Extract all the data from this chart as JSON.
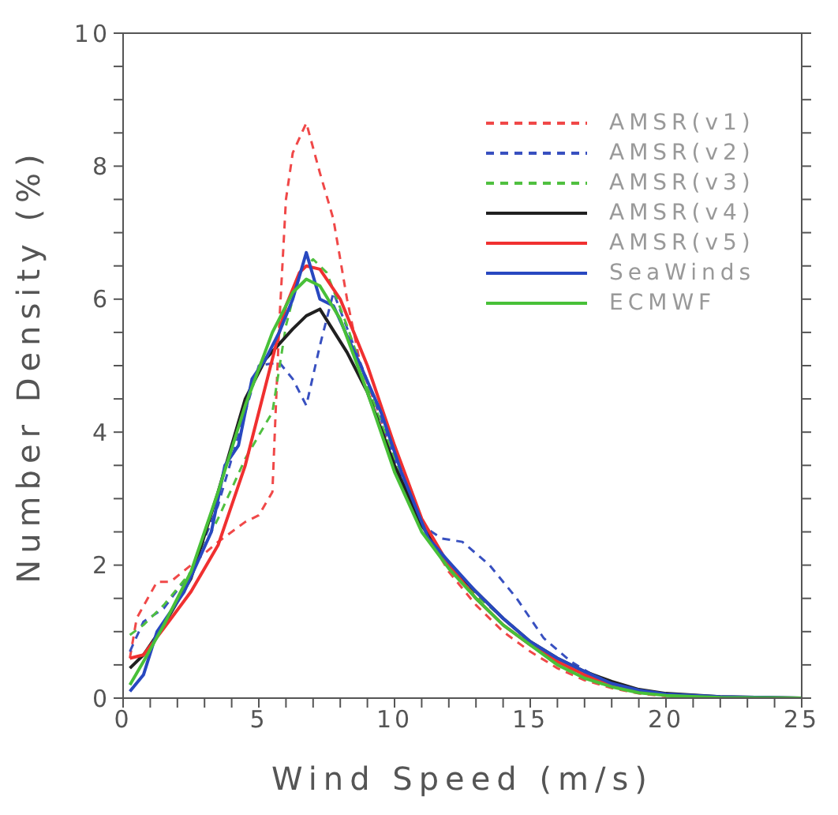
{
  "chart_data": {
    "type": "line",
    "xlabel": "Wind Speed (m/s)",
    "ylabel": "Number Density (%)",
    "xlim": [
      0,
      25
    ],
    "ylim": [
      0,
      10
    ],
    "xticks": [
      0,
      {
        "value": 1,
        "label": null
      },
      {
        "value": 2,
        "label": null
      },
      {
        "value": 3,
        "label": null
      },
      {
        "value": 4,
        "label": null
      },
      5,
      {
        "value": 6,
        "label": null
      },
      {
        "value": 7,
        "label": null
      },
      {
        "value": 8,
        "label": null
      },
      {
        "value": 9,
        "label": null
      },
      10,
      {
        "value": 11,
        "label": null
      },
      {
        "value": 12,
        "label": null
      },
      {
        "value": 13,
        "label": null
      },
      {
        "value": 14,
        "label": null
      },
      15,
      {
        "value": 16,
        "label": null
      },
      {
        "value": 17,
        "label": null
      },
      {
        "value": 18,
        "label": null
      },
      {
        "value": 19,
        "label": null
      },
      20,
      {
        "value": 21,
        "label": null
      },
      {
        "value": 22,
        "label": null
      },
      {
        "value": 23,
        "label": null
      },
      {
        "value": 24,
        "label": null
      },
      25
    ],
    "yticks": [
      0,
      {
        "value": 0.5,
        "label": null
      },
      {
        "value": 1,
        "label": null
      },
      {
        "value": 1.5,
        "label": null
      },
      2,
      {
        "value": 2.5,
        "label": null
      },
      {
        "value": 3,
        "label": null
      },
      {
        "value": 3.5,
        "label": null
      },
      4,
      {
        "value": 4.5,
        "label": null
      },
      {
        "value": 5,
        "label": null
      },
      {
        "value": 5.5,
        "label": null
      },
      6,
      {
        "value": 6.5,
        "label": null
      },
      {
        "value": 7,
        "label": null
      },
      {
        "value": 7.5,
        "label": null
      },
      8,
      {
        "value": 8.5,
        "label": null
      },
      {
        "value": 9,
        "label": null
      },
      {
        "value": 9.5,
        "label": null
      },
      10
    ],
    "legend": "top right",
    "marker": "none",
    "series": [
      {
        "name": "AMSR(v1)",
        "color": "#f04848",
        "line_style": "dashed",
        "x": [
          0.25,
          0.5,
          1.25,
          1.75,
          2.5,
          3.5,
          4.5,
          5,
          5.5,
          5.75,
          6,
          6.25,
          6.75,
          7.25,
          7.75,
          8.25,
          8.75,
          9.5,
          10,
          11,
          12,
          13,
          14,
          15,
          16,
          17,
          18,
          19,
          20
        ],
        "values": [
          0.6,
          1.2,
          1.75,
          1.75,
          2.0,
          2.35,
          2.65,
          2.75,
          3.1,
          5.6,
          7.5,
          8.2,
          8.65,
          7.9,
          7.2,
          6.0,
          5.0,
          4.2,
          3.4,
          2.6,
          1.9,
          1.4,
          1.0,
          0.7,
          0.45,
          0.27,
          0.15,
          0.07,
          0.03
        ]
      },
      {
        "name": "AMSR(v2)",
        "color": "#3850c0",
        "line_style": "dashed",
        "x": [
          0.25,
          0.75,
          1.5,
          2.5,
          3.5,
          4,
          4.5,
          5,
          5.75,
          6.25,
          6.75,
          7.25,
          7.75,
          8.5,
          9.25,
          10,
          11,
          11.75,
          12.5,
          13.5,
          14.5,
          15.5,
          16.5,
          17.5,
          18.5,
          20,
          22,
          25
        ],
        "values": [
          0.7,
          1.15,
          1.35,
          1.9,
          2.9,
          3.6,
          4.3,
          5.0,
          5.05,
          4.8,
          4.4,
          5.3,
          6.1,
          5.3,
          4.5,
          3.6,
          2.6,
          2.4,
          2.35,
          2.0,
          1.5,
          0.9,
          0.55,
          0.3,
          0.15,
          0.06,
          0.02,
          0
        ]
      },
      {
        "name": "AMSR(v3)",
        "color": "#50c040",
        "line_style": "dashed",
        "x": [
          0.25,
          0.75,
          1.5,
          2.5,
          3.5,
          4.5,
          5.5,
          6,
          6.5,
          7,
          7.5,
          8.25,
          9,
          10,
          11,
          12,
          13,
          14,
          15,
          16,
          17,
          18,
          19,
          20,
          22,
          25
        ],
        "values": [
          0.95,
          1.1,
          1.4,
          1.9,
          2.7,
          3.6,
          4.3,
          5.6,
          6.4,
          6.6,
          6.4,
          5.6,
          4.7,
          3.6,
          2.7,
          2.0,
          1.55,
          1.2,
          0.85,
          0.55,
          0.33,
          0.18,
          0.09,
          0.04,
          0.01,
          0
        ]
      },
      {
        "name": "AMSR(v4)",
        "color": "#202020",
        "line_style": "solid",
        "x": [
          0.25,
          0.75,
          1.5,
          2.5,
          3.5,
          4.5,
          5.25,
          6.25,
          6.75,
          7.25,
          8.25,
          9,
          10,
          11,
          12,
          13,
          14,
          15,
          16,
          17,
          18,
          19,
          20,
          22,
          25
        ],
        "values": [
          0.45,
          0.65,
          1.1,
          1.8,
          3.1,
          4.5,
          5.1,
          5.55,
          5.75,
          5.85,
          5.2,
          4.6,
          3.5,
          2.6,
          2.0,
          1.6,
          1.2,
          0.85,
          0.6,
          0.4,
          0.25,
          0.13,
          0.07,
          0.02,
          0
        ]
      },
      {
        "name": "AMSR(v5)",
        "color": "#f03030",
        "line_style": "solid",
        "x": [
          0.25,
          0.75,
          1.5,
          2.5,
          3.5,
          4.5,
          5.25,
          6,
          6.5,
          6.75,
          7.25,
          8,
          9,
          10,
          11,
          12,
          13,
          14,
          15,
          16,
          17,
          18,
          19
        ],
        "values": [
          0.6,
          0.65,
          1.05,
          1.6,
          2.3,
          3.5,
          4.7,
          5.9,
          6.4,
          6.5,
          6.45,
          6.0,
          5.0,
          3.8,
          2.7,
          2.0,
          1.5,
          1.1,
          0.8,
          0.55,
          0.35,
          0.2,
          0.1
        ]
      },
      {
        "name": "SeaWinds",
        "color": "#2848c0",
        "line_style": "solid",
        "x": [
          0.25,
          0.75,
          1.25,
          2.25,
          3.25,
          3.75,
          4.25,
          4.75,
          5.25,
          5.75,
          6.25,
          6.75,
          7.25,
          7.75,
          8.75,
          9.5,
          10.25,
          11.25,
          12,
          13,
          14,
          15,
          16,
          17,
          18,
          19,
          20,
          22,
          25
        ],
        "values": [
          0.1,
          0.35,
          1.0,
          1.6,
          2.5,
          3.5,
          3.8,
          4.8,
          5.1,
          5.5,
          6.0,
          6.7,
          6.0,
          5.9,
          5.0,
          4.3,
          3.4,
          2.4,
          2.05,
          1.6,
          1.2,
          0.85,
          0.6,
          0.4,
          0.22,
          0.12,
          0.06,
          0.02,
          0
        ]
      },
      {
        "name": "ECMWF",
        "color": "#48c038",
        "line_style": "solid",
        "x": [
          0.25,
          0.75,
          1.5,
          2.5,
          3.5,
          4.5,
          5.5,
          6.25,
          6.75,
          7.25,
          8,
          9,
          10,
          11,
          12,
          13,
          14,
          15,
          16,
          17,
          18,
          19,
          20,
          22,
          25
        ],
        "values": [
          0.2,
          0.55,
          1.1,
          1.9,
          3.1,
          4.4,
          5.5,
          6.1,
          6.3,
          6.2,
          5.7,
          4.6,
          3.4,
          2.5,
          1.95,
          1.5,
          1.1,
          0.8,
          0.5,
          0.3,
          0.17,
          0.08,
          0.04,
          0.01,
          0
        ]
      }
    ]
  }
}
